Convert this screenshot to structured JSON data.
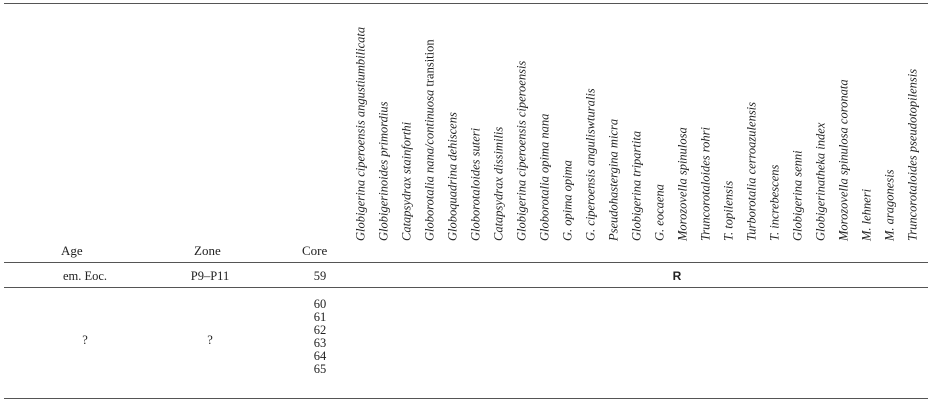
{
  "table": {
    "headers": {
      "age": "Age",
      "zone": "Zone",
      "core": "Core"
    },
    "species": [
      "Globigerina ciperoensis angustiumbilicata",
      "Globigerinoides primordius",
      "Catapsydrax stainforthi",
      "Globorotalia nana/continuosa",
      "Globoquadrina dehiscens",
      "Globorotaloides suteri",
      "Catapsydrax dissimilis",
      "Globigerina ciperoensis ciperoensis",
      "Globorotalia opima nana",
      "G. opima opima",
      "G. ciperoensis anguliswturalis",
      "Pseudohastergina micra",
      "Globigerina tripartita",
      "G. eocaena",
      "Morozovella spinulosa",
      "Truncorotaloides rohri",
      "T. topilensis",
      "Turborotalia cerroazulensis",
      "T. increbescens",
      "Globigerina senni",
      "Globigerinatheka index",
      "Morozovella spinulosa coronata",
      "M. lehneri",
      "M. aragonesis",
      "Truncorotaloides pseudotopilensis"
    ],
    "species_suffix": {
      "index": 3,
      "text": " transition"
    },
    "rows": [
      {
        "age": "em. Eoc.",
        "zone": "P9–P11",
        "core": "59",
        "mark": "R"
      },
      {
        "age": "?",
        "zone": "?",
        "cores": [
          "60",
          "61",
          "62",
          "63",
          "64",
          "65"
        ]
      }
    ]
  }
}
